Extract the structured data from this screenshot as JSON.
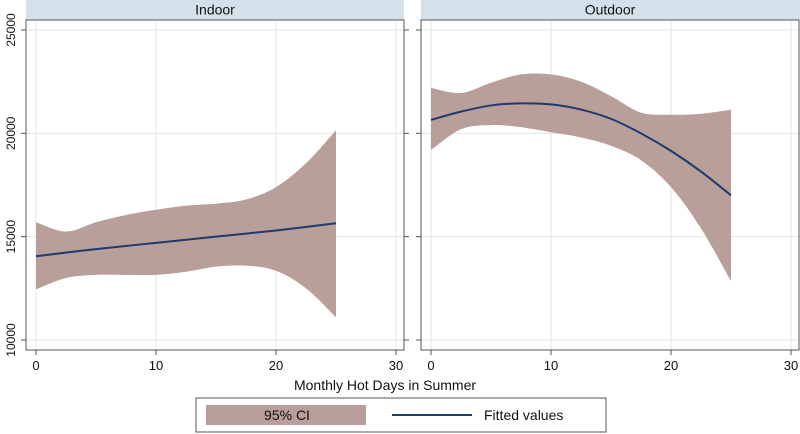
{
  "chart_data": {
    "type": "area",
    "xlabel": "Monthly Hot Days in Summer",
    "ylabel": "",
    "xlim": [
      0,
      30
    ],
    "ylim": [
      10000,
      25000
    ],
    "xticks": [
      0,
      10,
      20,
      30
    ],
    "yticks": [
      10000,
      15000,
      20000,
      25000
    ],
    "grid": true,
    "legend_position": "bottom",
    "legend": [
      {
        "label": "95% CI",
        "kind": "band",
        "color": "#b89f9a"
      },
      {
        "label": "Fitted values",
        "kind": "line",
        "color": "#1f3a6b"
      }
    ],
    "panels": [
      {
        "title": "Indoor",
        "series": [
          {
            "name": "Fitted values",
            "x": [
              0,
              5,
              10,
              15,
              20,
              25
            ],
            "y": [
              14050,
              14400,
              14700,
              15000,
              15300,
              15650
            ]
          },
          {
            "name": "95% CI",
            "x": [
              0,
              2.5,
              5,
              7.5,
              10,
              12.5,
              15,
              17.5,
              20,
              22.5,
              25
            ],
            "lower": [
              12450,
              13000,
              13150,
              13150,
              13150,
              13300,
              13550,
              13600,
              13350,
              12500,
              11100
            ],
            "upper": [
              15700,
              15250,
              15700,
              16050,
              16300,
              16500,
              16600,
              16800,
              17400,
              18550,
              20150
            ]
          }
        ]
      },
      {
        "title": "Outdoor",
        "series": [
          {
            "name": "Fitted values",
            "x": [
              0,
              2.5,
              5,
              7.5,
              10,
              12.5,
              15,
              17.5,
              20,
              22.5,
              25
            ],
            "y": [
              20650,
              21050,
              21350,
              21450,
              21400,
              21150,
              20700,
              20000,
              19150,
              18150,
              17000
            ]
          },
          {
            "name": "95% CI",
            "x": [
              0,
              2.5,
              5,
              7.5,
              10,
              12.5,
              15,
              17.5,
              20,
              22.5,
              25
            ],
            "lower": [
              19200,
              20200,
              20400,
              20300,
              20050,
              19800,
              19400,
              18700,
              17400,
              15400,
              12850
            ],
            "upper": [
              22200,
              21950,
              22450,
              22850,
              22850,
              22500,
              21800,
              21000,
              20900,
              20950,
              21150
            ]
          }
        ]
      }
    ]
  }
}
